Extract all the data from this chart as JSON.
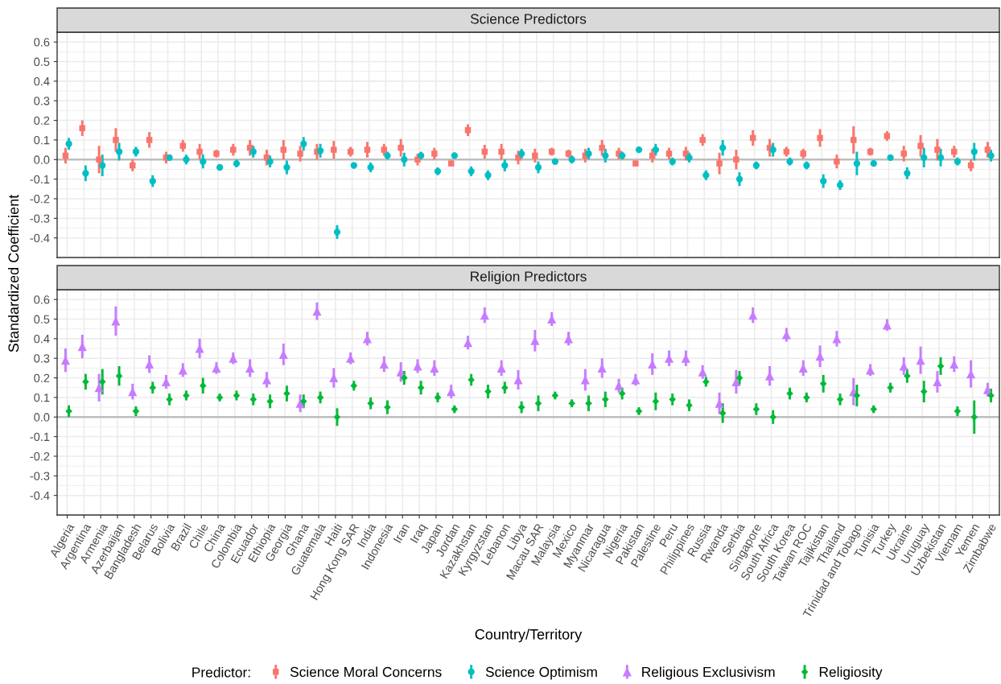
{
  "chart_data": [
    {
      "type": "scatter",
      "title": "Science Predictors",
      "ylabel": "Standardized Coefficient",
      "categories": [
        "Algeria",
        "Argentina",
        "Armenia",
        "Azerbaijan",
        "Bangladesh",
        "Belarus",
        "Bolivia",
        "Brazil",
        "Chile",
        "China",
        "Colombia",
        "Ecuador",
        "Ethiopia",
        "Georgia",
        "Ghana",
        "Guatemala",
        "Haiti",
        "Hong Kong SAR",
        "India",
        "Indonesia",
        "Iran",
        "Iraq",
        "Japan",
        "Jordan",
        "Kazakhstan",
        "Kyrgyzstan",
        "Lebanon",
        "Libya",
        "Macau SAR",
        "Malaysia",
        "Mexico",
        "Myanmar",
        "Nicaragua",
        "Nigeria",
        "Pakistan",
        "Palestine",
        "Peru",
        "Philippines",
        "Russia",
        "Rwanda",
        "Serbia",
        "Singapore",
        "South Africa",
        "South Korea",
        "Taiwan ROC",
        "Tajikistan",
        "Thailand",
        "Trinidad and Tobago",
        "Tunisia",
        "Turkey",
        "Ukraine",
        "Uruguay",
        "Uzbekistan",
        "Vietnam",
        "Yemen",
        "Zimbabwe"
      ],
      "series": [
        {
          "name": "Science Moral Concerns",
          "color": "#f8766d",
          "marker": "square",
          "values": [
            0.02,
            0.16,
            0.0,
            0.1,
            -0.03,
            0.1,
            0.01,
            0.07,
            0.04,
            0.03,
            0.05,
            0.06,
            0.01,
            0.05,
            0.03,
            0.04,
            0.05,
            0.04,
            0.05,
            0.05,
            0.06,
            0.0,
            0.03,
            -0.02,
            0.15,
            0.04,
            0.04,
            0.01,
            0.02,
            0.04,
            0.03,
            0.02,
            0.06,
            0.03,
            -0.02,
            0.02,
            0.03,
            0.03,
            0.1,
            -0.02,
            0.0,
            0.11,
            0.06,
            0.04,
            0.03,
            0.11,
            -0.01,
            0.1,
            0.04,
            0.12,
            0.03,
            0.07,
            0.05,
            0.04,
            -0.03,
            0.05
          ],
          "errors": [
            0.04,
            0.04,
            0.07,
            0.06,
            0.03,
            0.04,
            0.03,
            0.03,
            0.04,
            0.02,
            0.03,
            0.04,
            0.04,
            0.05,
            0.04,
            0.04,
            0.045,
            0.025,
            0.04,
            0.03,
            0.045,
            0.03,
            0.03,
            0.015,
            0.03,
            0.035,
            0.04,
            0.035,
            0.035,
            0.02,
            0.02,
            0.035,
            0.04,
            0.03,
            0.015,
            0.035,
            0.03,
            0.035,
            0.03,
            0.055,
            0.05,
            0.04,
            0.045,
            0.025,
            0.025,
            0.045,
            0.035,
            0.07,
            0.02,
            0.025,
            0.04,
            0.055,
            0.055,
            0.03,
            0.03,
            0.04
          ]
        },
        {
          "name": "Science Optimism",
          "color": "#00bfc4",
          "marker": "circle",
          "values": [
            0.08,
            -0.07,
            -0.03,
            0.04,
            0.04,
            -0.11,
            0.01,
            0.0,
            -0.01,
            -0.04,
            -0.02,
            0.04,
            -0.01,
            -0.04,
            0.08,
            0.045,
            -0.37,
            -0.03,
            -0.04,
            0.02,
            0.0,
            0.02,
            -0.06,
            0.02,
            -0.06,
            -0.08,
            -0.03,
            0.03,
            -0.04,
            -0.01,
            0.0,
            0.03,
            0.02,
            0.02,
            0.05,
            0.05,
            -0.01,
            0.01,
            -0.08,
            0.06,
            -0.1,
            -0.03,
            0.05,
            -0.01,
            -0.03,
            -0.11,
            -0.13,
            -0.02,
            -0.02,
            0.01,
            -0.07,
            0.01,
            0.01,
            -0.01,
            0.04,
            0.02
          ],
          "errors": [
            0.03,
            0.04,
            0.055,
            0.045,
            0.025,
            0.03,
            0.015,
            0.025,
            0.035,
            0.015,
            0.02,
            0.03,
            0.03,
            0.035,
            0.035,
            0.035,
            0.035,
            0.015,
            0.025,
            0.02,
            0.035,
            0.02,
            0.02,
            0.015,
            0.025,
            0.025,
            0.03,
            0.025,
            0.03,
            0.015,
            0.02,
            0.03,
            0.035,
            0.02,
            0.015,
            0.03,
            0.02,
            0.025,
            0.025,
            0.04,
            0.035,
            0.02,
            0.035,
            0.02,
            0.02,
            0.035,
            0.025,
            0.06,
            0.015,
            0.015,
            0.03,
            0.05,
            0.045,
            0.02,
            0.045,
            0.03
          ]
        }
      ],
      "ylim": [
        -0.5,
        0.65
      ],
      "yticks": [
        -0.4,
        -0.3,
        -0.2,
        -0.1,
        {
          "value": 0,
          "label": "0.0"
        },
        0.1,
        0.2,
        0.3,
        0.4,
        0.5,
        0.6
      ],
      "grid": true,
      "ref_lines": [
        {
          "axis": "y",
          "value": 0,
          "color": "#bebebe"
        }
      ],
      "legend": "bottom",
      "tick_labels": "y"
    },
    {
      "type": "scatter",
      "title": "Religion Predictors",
      "xlabel": "Country/Territory",
      "legend_title": "Predictor:",
      "categories": [
        "Algeria",
        "Argentina",
        "Armenia",
        "Azerbaijan",
        "Bangladesh",
        "Belarus",
        "Bolivia",
        "Brazil",
        "Chile",
        "China",
        "Colombia",
        "Ecuador",
        "Ethiopia",
        "Georgia",
        "Ghana",
        "Guatemala",
        "Haiti",
        "Hong Kong SAR",
        "India",
        "Indonesia",
        "Iran",
        "Iraq",
        "Japan",
        "Jordan",
        "Kazakhstan",
        "Kyrgyzstan",
        "Lebanon",
        "Libya",
        "Macau SAR",
        "Malaysia",
        "Mexico",
        "Myanmar",
        "Nicaragua",
        "Nigeria",
        "Pakistan",
        "Palestine",
        "Peru",
        "Philippines",
        "Russia",
        "Rwanda",
        "Serbia",
        "Singapore",
        "South Africa",
        "South Korea",
        "Taiwan ROC",
        "Tajikistan",
        "Thailand",
        "Trinidad and Tobago",
        "Tunisia",
        "Turkey",
        "Ukraine",
        "Uruguay",
        "Uzbekistan",
        "Vietnam",
        "Yemen",
        "Zimbabwe"
      ],
      "series": [
        {
          "name": "Religious Exclusivism",
          "color": "#c77cff",
          "marker": "triangle",
          "values": [
            0.29,
            0.36,
            0.15,
            0.49,
            0.13,
            0.27,
            0.18,
            0.24,
            0.35,
            0.25,
            0.3,
            0.25,
            0.19,
            0.32,
            0.07,
            0.54,
            0.2,
            0.3,
            0.4,
            0.27,
            0.23,
            0.26,
            0.25,
            0.13,
            0.38,
            0.52,
            0.25,
            0.19,
            0.39,
            0.5,
            0.4,
            0.19,
            0.25,
            0.16,
            0.19,
            0.27,
            0.3,
            0.3,
            0.23,
            0.07,
            0.18,
            0.52,
            0.21,
            0.42,
            0.25,
            0.31,
            0.4,
            0.13,
            0.24,
            0.47,
            0.26,
            0.29,
            0.18,
            0.27,
            0.22,
            0.14
          ],
          "errors": [
            0.06,
            0.06,
            0.07,
            0.075,
            0.04,
            0.045,
            0.035,
            0.035,
            0.05,
            0.03,
            0.03,
            0.045,
            0.04,
            0.055,
            0.045,
            0.045,
            0.05,
            0.03,
            0.035,
            0.04,
            0.05,
            0.035,
            0.04,
            0.035,
            0.035,
            0.04,
            0.04,
            0.05,
            0.055,
            0.035,
            0.035,
            0.055,
            0.05,
            0.035,
            0.03,
            0.055,
            0.04,
            0.04,
            0.035,
            0.055,
            0.06,
            0.04,
            0.05,
            0.035,
            0.04,
            0.055,
            0.04,
            0.07,
            0.03,
            0.03,
            0.045,
            0.07,
            0.055,
            0.04,
            0.07,
            0.035
          ]
        },
        {
          "name": "Religiosity",
          "color": "#00ba38",
          "marker": "diamond",
          "values": [
            0.03,
            0.18,
            0.18,
            0.21,
            0.03,
            0.15,
            0.09,
            0.11,
            0.16,
            0.1,
            0.11,
            0.09,
            0.08,
            0.12,
            0.08,
            0.1,
            0.0,
            0.16,
            0.07,
            0.05,
            0.2,
            0.15,
            0.1,
            0.04,
            0.19,
            0.13,
            0.15,
            0.05,
            0.07,
            0.11,
            0.07,
            0.07,
            0.09,
            0.12,
            0.03,
            0.08,
            0.09,
            0.06,
            0.18,
            0.02,
            0.2,
            0.04,
            0.0,
            0.12,
            0.1,
            0.17,
            0.09,
            0.11,
            0.04,
            0.15,
            0.21,
            0.13,
            0.26,
            0.03,
            0.0,
            0.11
          ],
          "errors": [
            0.03,
            0.04,
            0.065,
            0.05,
            0.025,
            0.03,
            0.03,
            0.025,
            0.04,
            0.02,
            0.025,
            0.03,
            0.035,
            0.04,
            0.035,
            0.03,
            0.045,
            0.025,
            0.03,
            0.035,
            0.035,
            0.035,
            0.025,
            0.02,
            0.03,
            0.035,
            0.03,
            0.03,
            0.04,
            0.02,
            0.02,
            0.04,
            0.04,
            0.03,
            0.02,
            0.045,
            0.03,
            0.03,
            0.025,
            0.05,
            0.035,
            0.03,
            0.035,
            0.03,
            0.025,
            0.045,
            0.03,
            0.055,
            0.02,
            0.025,
            0.035,
            0.055,
            0.045,
            0.025,
            0.085,
            0.035
          ]
        }
      ],
      "ylim": [
        -0.5,
        0.65
      ],
      "yticks": [
        -0.4,
        -0.3,
        -0.2,
        -0.1,
        {
          "value": 0,
          "label": "0.0"
        },
        0.1,
        0.2,
        0.3,
        0.4,
        0.5,
        0.6
      ],
      "grid": true,
      "ref_lines": [
        {
          "axis": "y",
          "value": 0,
          "color": "#bebebe"
        }
      ],
      "legend": "bottom"
    }
  ]
}
